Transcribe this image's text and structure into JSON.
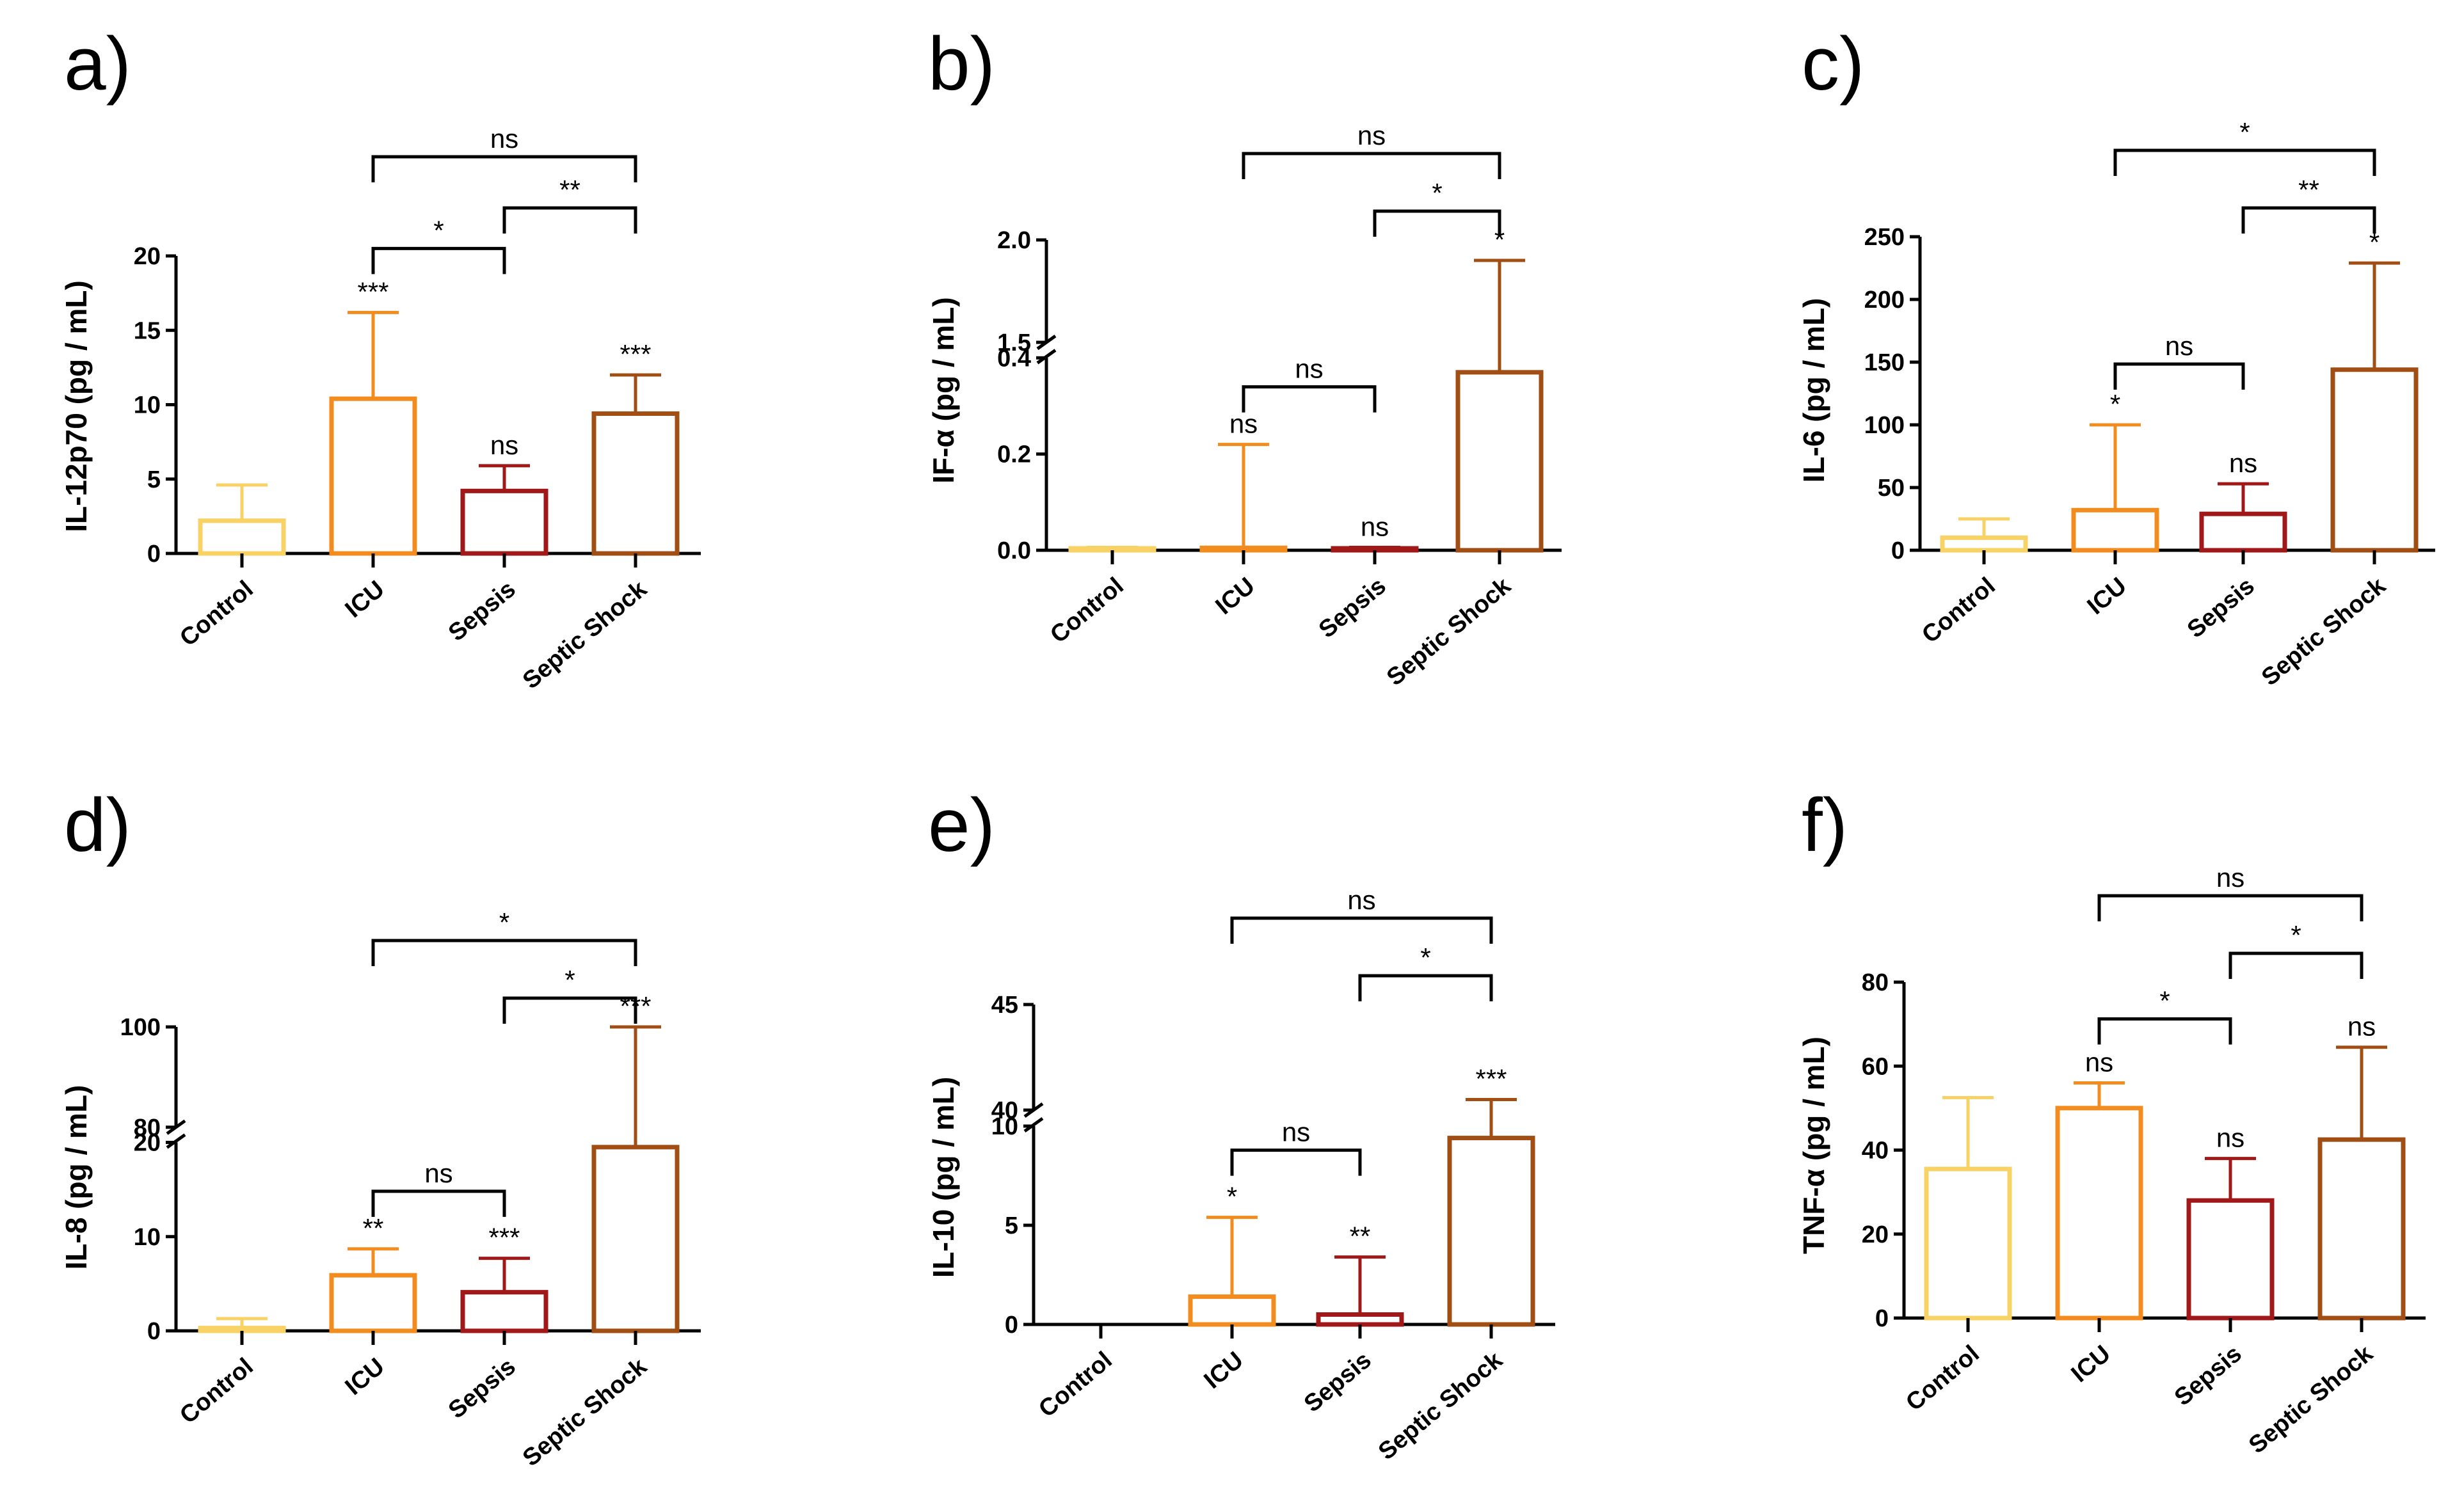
{
  "colors": {
    "Control": "#F9D266",
    "ICU": "#F28C1E",
    "Sepsis": "#A01818",
    "Septic Shock": "#A04E14",
    "axis": "#000000"
  },
  "chart_data": [
    {
      "panel": "a)",
      "type": "bar",
      "ylabel": "IL-12p70 (pg / mL)",
      "categories": [
        "Control",
        "ICU",
        "Sepsis",
        "Septic Shock"
      ],
      "values": [
        2.2,
        10.4,
        4.2,
        9.4
      ],
      "errors": [
        4.6,
        16.2,
        5.9,
        12.0
      ],
      "ylim": [
        0,
        20
      ],
      "ticks": [
        "0",
        "5",
        "10",
        "15",
        "20"
      ],
      "tick_values": [
        0,
        5,
        10,
        15,
        20
      ],
      "bar_labels": [
        "",
        "***",
        "ns",
        "***"
      ],
      "comparisons": [
        {
          "from": 1,
          "to": 2,
          "label": "*"
        },
        {
          "from": 2,
          "to": 3,
          "label": "**"
        },
        {
          "from": 1,
          "to": 3,
          "label": "ns"
        }
      ]
    },
    {
      "panel": "b)",
      "type": "bar",
      "ylabel": "IF-α (pg / mL)",
      "categories": [
        "Control",
        "ICU",
        "Sepsis",
        "Septic Shock"
      ],
      "values": [
        0.003,
        0.005,
        0.004,
        0.37
      ],
      "errors": [
        0.006,
        0.22,
        0.006,
        1.9
      ],
      "axis_break": {
        "lower": [
          0,
          0.4
        ],
        "upper": [
          1.5,
          2.0
        ]
      },
      "ticks": [
        "0.0",
        "0.2",
        "0.4",
        "1.5",
        "2.0"
      ],
      "tick_values": [
        0,
        0.2,
        0.4,
        1.5,
        2.0
      ],
      "bar_labels": [
        "",
        "ns",
        "ns",
        "*"
      ],
      "comparisons": [
        {
          "from": 1,
          "to": 2,
          "label": "ns"
        },
        {
          "from": 2,
          "to": 3,
          "label": "*"
        },
        {
          "from": 1,
          "to": 3,
          "label": "ns"
        }
      ]
    },
    {
      "panel": "c)",
      "type": "bar",
      "ylabel": "IL-6 (pg / mL)",
      "categories": [
        "Control",
        "ICU",
        "Sepsis",
        "Septic Shock"
      ],
      "values": [
        10,
        32,
        29,
        144
      ],
      "errors": [
        25,
        100,
        53,
        229
      ],
      "ylim": [
        0,
        250
      ],
      "ticks": [
        "0",
        "50",
        "100",
        "150",
        "200",
        "250"
      ],
      "tick_values": [
        0,
        50,
        100,
        150,
        200,
        250
      ],
      "bar_labels": [
        "",
        "*",
        "ns",
        "*"
      ],
      "comparisons": [
        {
          "from": 1,
          "to": 2,
          "label": "ns"
        },
        {
          "from": 2,
          "to": 3,
          "label": "**"
        },
        {
          "from": 1,
          "to": 3,
          "label": "*"
        }
      ]
    },
    {
      "panel": "d)",
      "type": "bar",
      "ylabel": "IL-8 (pg / mL)",
      "categories": [
        "Control",
        "ICU",
        "Sepsis",
        "Septic Shock"
      ],
      "values": [
        0.3,
        5.9,
        4.1,
        19.5
      ],
      "errors": [
        1.3,
        8.7,
        7.7,
        100
      ],
      "axis_break": {
        "lower": [
          0,
          20
        ],
        "upper": [
          80,
          100
        ]
      },
      "ticks": [
        "0",
        "10",
        "20",
        "80",
        "100"
      ],
      "tick_values": [
        0,
        10,
        20,
        80,
        100
      ],
      "bar_labels": [
        "",
        "**",
        "***",
        "***"
      ],
      "comparisons": [
        {
          "from": 1,
          "to": 2,
          "label": "ns"
        },
        {
          "from": 2,
          "to": 3,
          "label": "*"
        },
        {
          "from": 1,
          "to": 3,
          "label": "*"
        }
      ]
    },
    {
      "panel": "e)",
      "type": "bar",
      "ylabel": "IL-10 (pg / mL)",
      "categories": [
        "Control",
        "ICU",
        "Sepsis",
        "Septic Shock"
      ],
      "values": [
        0,
        1.4,
        0.5,
        9.4
      ],
      "errors": [
        0,
        5.4,
        3.4,
        40.5
      ],
      "axis_break": {
        "lower": [
          0,
          10
        ],
        "upper": [
          40,
          45
        ]
      },
      "ticks": [
        "0",
        "5",
        "10",
        "40",
        "45"
      ],
      "tick_values": [
        0,
        5,
        10,
        40,
        45
      ],
      "bar_labels": [
        "",
        "*",
        "**",
        "***"
      ],
      "comparisons": [
        {
          "from": 1,
          "to": 2,
          "label": "ns"
        },
        {
          "from": 2,
          "to": 3,
          "label": "*"
        },
        {
          "from": 1,
          "to": 3,
          "label": "ns"
        }
      ]
    },
    {
      "panel": "f)",
      "type": "bar",
      "ylabel": "TNF-α (pg / mL)",
      "categories": [
        "Control",
        "ICU",
        "Sepsis",
        "Septic Shock"
      ],
      "values": [
        35.5,
        50,
        28,
        42.5
      ],
      "errors": [
        52.5,
        56,
        38,
        64.5
      ],
      "ylim": [
        0,
        80
      ],
      "ticks": [
        "0",
        "20",
        "40",
        "60",
        "80"
      ],
      "tick_values": [
        0,
        20,
        40,
        60,
        80
      ],
      "bar_labels": [
        "",
        "ns",
        "ns",
        "ns"
      ],
      "comparisons": [
        {
          "from": 1,
          "to": 2,
          "label": "*"
        },
        {
          "from": 2,
          "to": 3,
          "label": "*"
        },
        {
          "from": 1,
          "to": 3,
          "label": "ns"
        }
      ]
    }
  ]
}
